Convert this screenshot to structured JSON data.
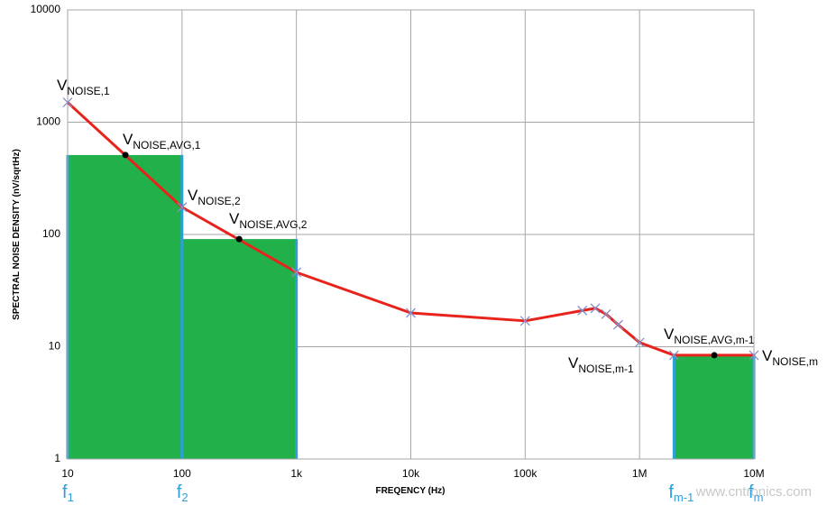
{
  "chart_data": {
    "type": "line",
    "xlog": true,
    "ylog": true,
    "grid": true,
    "xlim": [
      10,
      10000000
    ],
    "ylim": [
      1,
      10000
    ],
    "xticks": [
      10,
      100,
      {
        "value": 1000,
        "label": "1k"
      },
      {
        "value": 10000,
        "label": "10k"
      },
      {
        "value": 100000,
        "label": "100k"
      },
      {
        "value": 1000000,
        "label": "1M"
      },
      {
        "value": 10000000,
        "label": "10M"
      }
    ],
    "yticks": [
      1,
      10,
      100,
      1000,
      10000
    ],
    "x_label": "FREQENCY (Hz)",
    "y_label": "SPECTRAL NOISE DENSITY  (nV/sqrtHz)",
    "series": [
      {
        "color": "#e8231b",
        "marker_color": "#8a8fc8",
        "x": [
          10,
          100,
          1000,
          10000,
          100000,
          316000,
          410000,
          510000,
          650000,
          1000000,
          2000000,
          10000000
        ],
        "values": [
          1500,
          175,
          46,
          20,
          17,
          21,
          22,
          19.5,
          15.7,
          10.9,
          8.4,
          8.4
        ]
      }
    ],
    "avg_points": {
      "color": "#000000",
      "x": [
        32,
        316,
        4500000
      ],
      "values": [
        510,
        91,
        8.4
      ]
    },
    "bars": {
      "color": "#22b04b",
      "edge_color": "#2e9fd8",
      "items": [
        {
          "x0": 10,
          "x1": 100,
          "value": 510
        },
        {
          "x0": 100,
          "x1": 1000,
          "value": 91
        },
        {
          "x0": 2000000,
          "x1": 10000000,
          "value": 8.4
        }
      ]
    },
    "annotations": [
      {
        "main": "V",
        "sub": "NOISE,1"
      },
      {
        "main": "V",
        "sub": "NOISE,AVG,1"
      },
      {
        "main": "V",
        "sub": "NOISE,2"
      },
      {
        "main": "V",
        "sub": "NOISE,AVG,2"
      },
      {
        "main": "V",
        "sub": "NOISE,m-1"
      },
      {
        "main": "V",
        "sub": "NOISE,AVG,m-1"
      },
      {
        "main": "V",
        "sub": "NOISE,m"
      }
    ],
    "freq_markers": [
      {
        "x": 10,
        "main": "f",
        "sub": "1"
      },
      {
        "x": 100,
        "main": "f",
        "sub": "2"
      },
      {
        "x": 2000000,
        "main": "f",
        "sub": "m-1"
      },
      {
        "x": 10000000,
        "main": "f",
        "sub": "m"
      }
    ],
    "watermark": "www.cntronics.com"
  }
}
